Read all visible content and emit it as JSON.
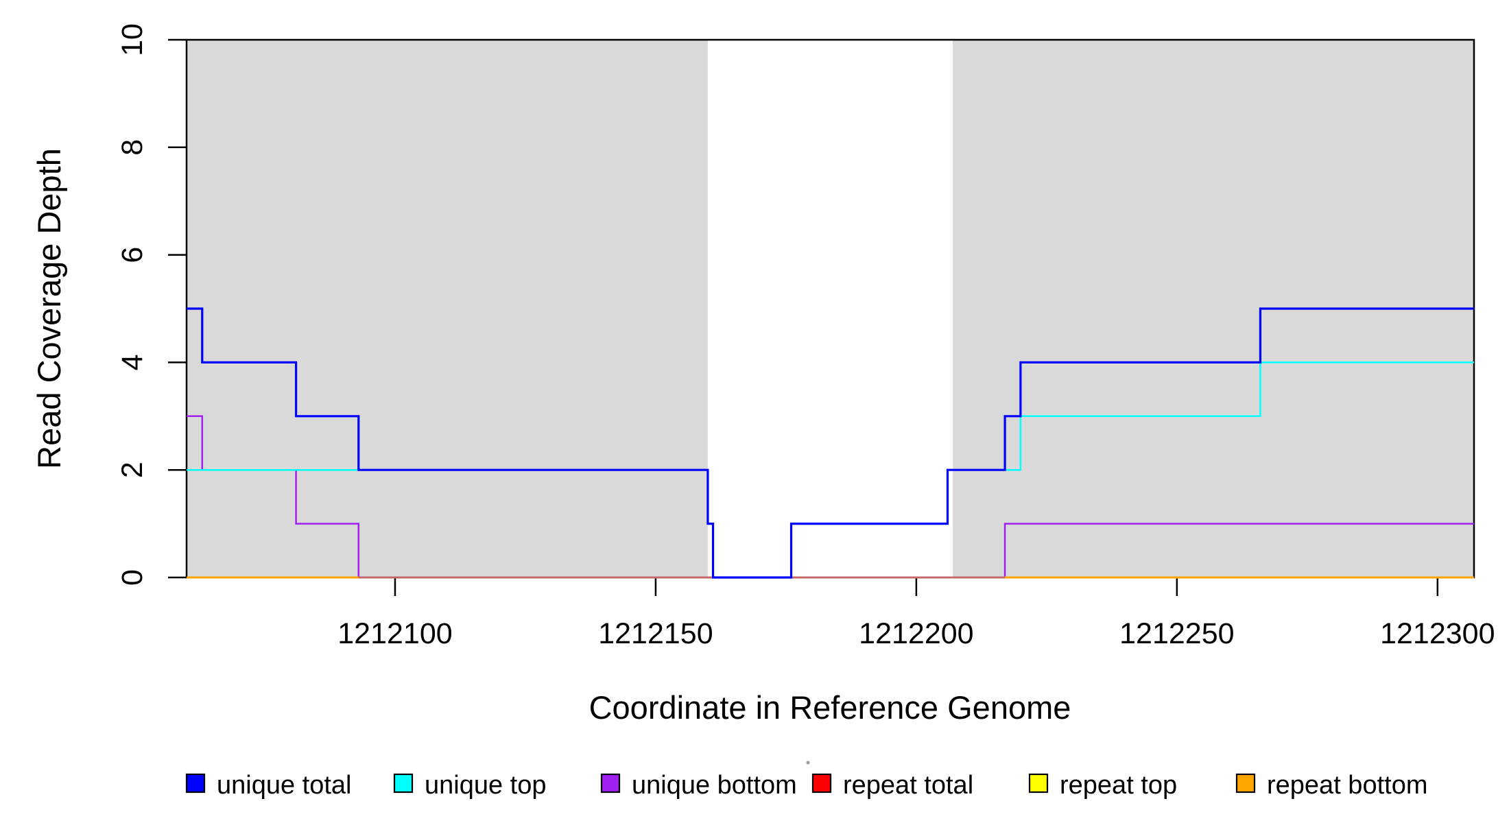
{
  "figure": {
    "background": "#ffffff",
    "plot_bg": "#ffffff"
  },
  "chart_data": {
    "type": "line",
    "subtype": "step",
    "title": "",
    "xlabel": "Coordinate in Reference Genome",
    "ylabel": "Read Coverage Depth",
    "xlim": [
      1212060,
      1212307
    ],
    "ylim": [
      0,
      10
    ],
    "xticks": [
      1212100,
      1212150,
      1212200,
      1212250,
      1212300
    ],
    "yticks": [
      0,
      2,
      4,
      6,
      8,
      10
    ],
    "grid": "off",
    "legend_position": "bottom",
    "shaded_regions": {
      "label": "repeat-region-band",
      "color": "#d9d9d9",
      "ranges": [
        [
          1212060,
          1212160
        ],
        [
          1212207,
          1212307
        ]
      ]
    },
    "series": [
      {
        "name": "unique total",
        "color": "#0000ff",
        "steps": [
          [
            1212060,
            5
          ],
          [
            1212063,
            4
          ],
          [
            1212081,
            3
          ],
          [
            1212093,
            2
          ],
          [
            1212160,
            1
          ],
          [
            1212161,
            0
          ],
          [
            1212176,
            1
          ],
          [
            1212206,
            2
          ],
          [
            1212217,
            3
          ],
          [
            1212220,
            4
          ],
          [
            1212266,
            5
          ]
        ]
      },
      {
        "name": "unique top",
        "color": "#00ffff",
        "steps": [
          [
            1212060,
            2
          ],
          [
            1212160,
            1
          ],
          [
            1212161,
            0
          ],
          [
            1212176,
            1
          ],
          [
            1212206,
            2
          ],
          [
            1212220,
            3
          ],
          [
            1212266,
            4
          ]
        ]
      },
      {
        "name": "unique bottom",
        "color": "#a020f0",
        "steps": [
          [
            1212060,
            3
          ],
          [
            1212063,
            2
          ],
          [
            1212081,
            1
          ],
          [
            1212093,
            0
          ],
          [
            1212217,
            1
          ]
        ]
      },
      {
        "name": "repeat total",
        "color": "#ff0000",
        "steps": [
          [
            1212060,
            0
          ]
        ]
      },
      {
        "name": "repeat top",
        "color": "#ffff00",
        "steps": [
          [
            1212060,
            0
          ]
        ]
      },
      {
        "name": "repeat bottom",
        "color": "#ffa500",
        "steps": [
          [
            1212060,
            0
          ]
        ]
      }
    ],
    "baseline_blend_segments": [
      {
        "color": "#ffa500",
        "range": [
          1212060,
          1212093
        ]
      },
      {
        "color": "#c4686e",
        "range": [
          1212093,
          1212217
        ]
      },
      {
        "color": "#ffa500",
        "range": [
          1212217,
          1212307
        ]
      }
    ]
  }
}
